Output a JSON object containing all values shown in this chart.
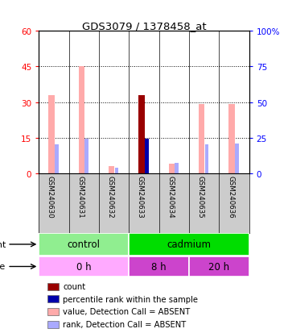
{
  "title": "GDS3079 / 1378458_at",
  "samples": [
    "GSM240630",
    "GSM240631",
    "GSM240632",
    "GSM240633",
    "GSM240634",
    "GSM240635",
    "GSM240636"
  ],
  "value_absent": [
    33,
    45,
    3,
    0,
    4,
    29,
    29
  ],
  "rank_absent": [
    20,
    24,
    4,
    0,
    7,
    20,
    21
  ],
  "count_present": [
    0,
    0,
    0,
    33,
    0,
    0,
    0
  ],
  "percentile_present": [
    0,
    0,
    0,
    24,
    0,
    0,
    0
  ],
  "ylim_left": [
    0,
    60
  ],
  "ylim_right": [
    0,
    100
  ],
  "yticks_left": [
    0,
    15,
    30,
    45,
    60
  ],
  "yticks_right": [
    0,
    25,
    50,
    75,
    100
  ],
  "ytick_labels_left": [
    "0",
    "15",
    "30",
    "45",
    "60"
  ],
  "ytick_labels_right": [
    "0",
    "25",
    "50",
    "75",
    "100%"
  ],
  "agent_groups": [
    {
      "label": "control",
      "start": 0,
      "end": 3,
      "color": "#90EE90"
    },
    {
      "label": "cadmium",
      "start": 3,
      "end": 7,
      "color": "#00DD00"
    }
  ],
  "time_groups": [
    {
      "label": "0 h",
      "start": 0,
      "end": 3,
      "color": "#FFAAFF"
    },
    {
      "label": "8 h",
      "start": 3,
      "end": 5,
      "color": "#CC44CC"
    },
    {
      "label": "20 h",
      "start": 5,
      "end": 7,
      "color": "#CC44CC"
    }
  ],
  "color_count": "#990000",
  "color_percentile": "#0000AA",
  "color_value_absent": "#FFAAAA",
  "color_rank_absent": "#AAAAFF",
  "sample_bg": "#CCCCCC",
  "legend_items": [
    {
      "color": "#990000",
      "label": "count"
    },
    {
      "color": "#0000AA",
      "label": "percentile rank within the sample"
    },
    {
      "color": "#FFAAAA",
      "label": "value, Detection Call = ABSENT"
    },
    {
      "color": "#AAAAFF",
      "label": "rank, Detection Call = ABSENT"
    }
  ]
}
